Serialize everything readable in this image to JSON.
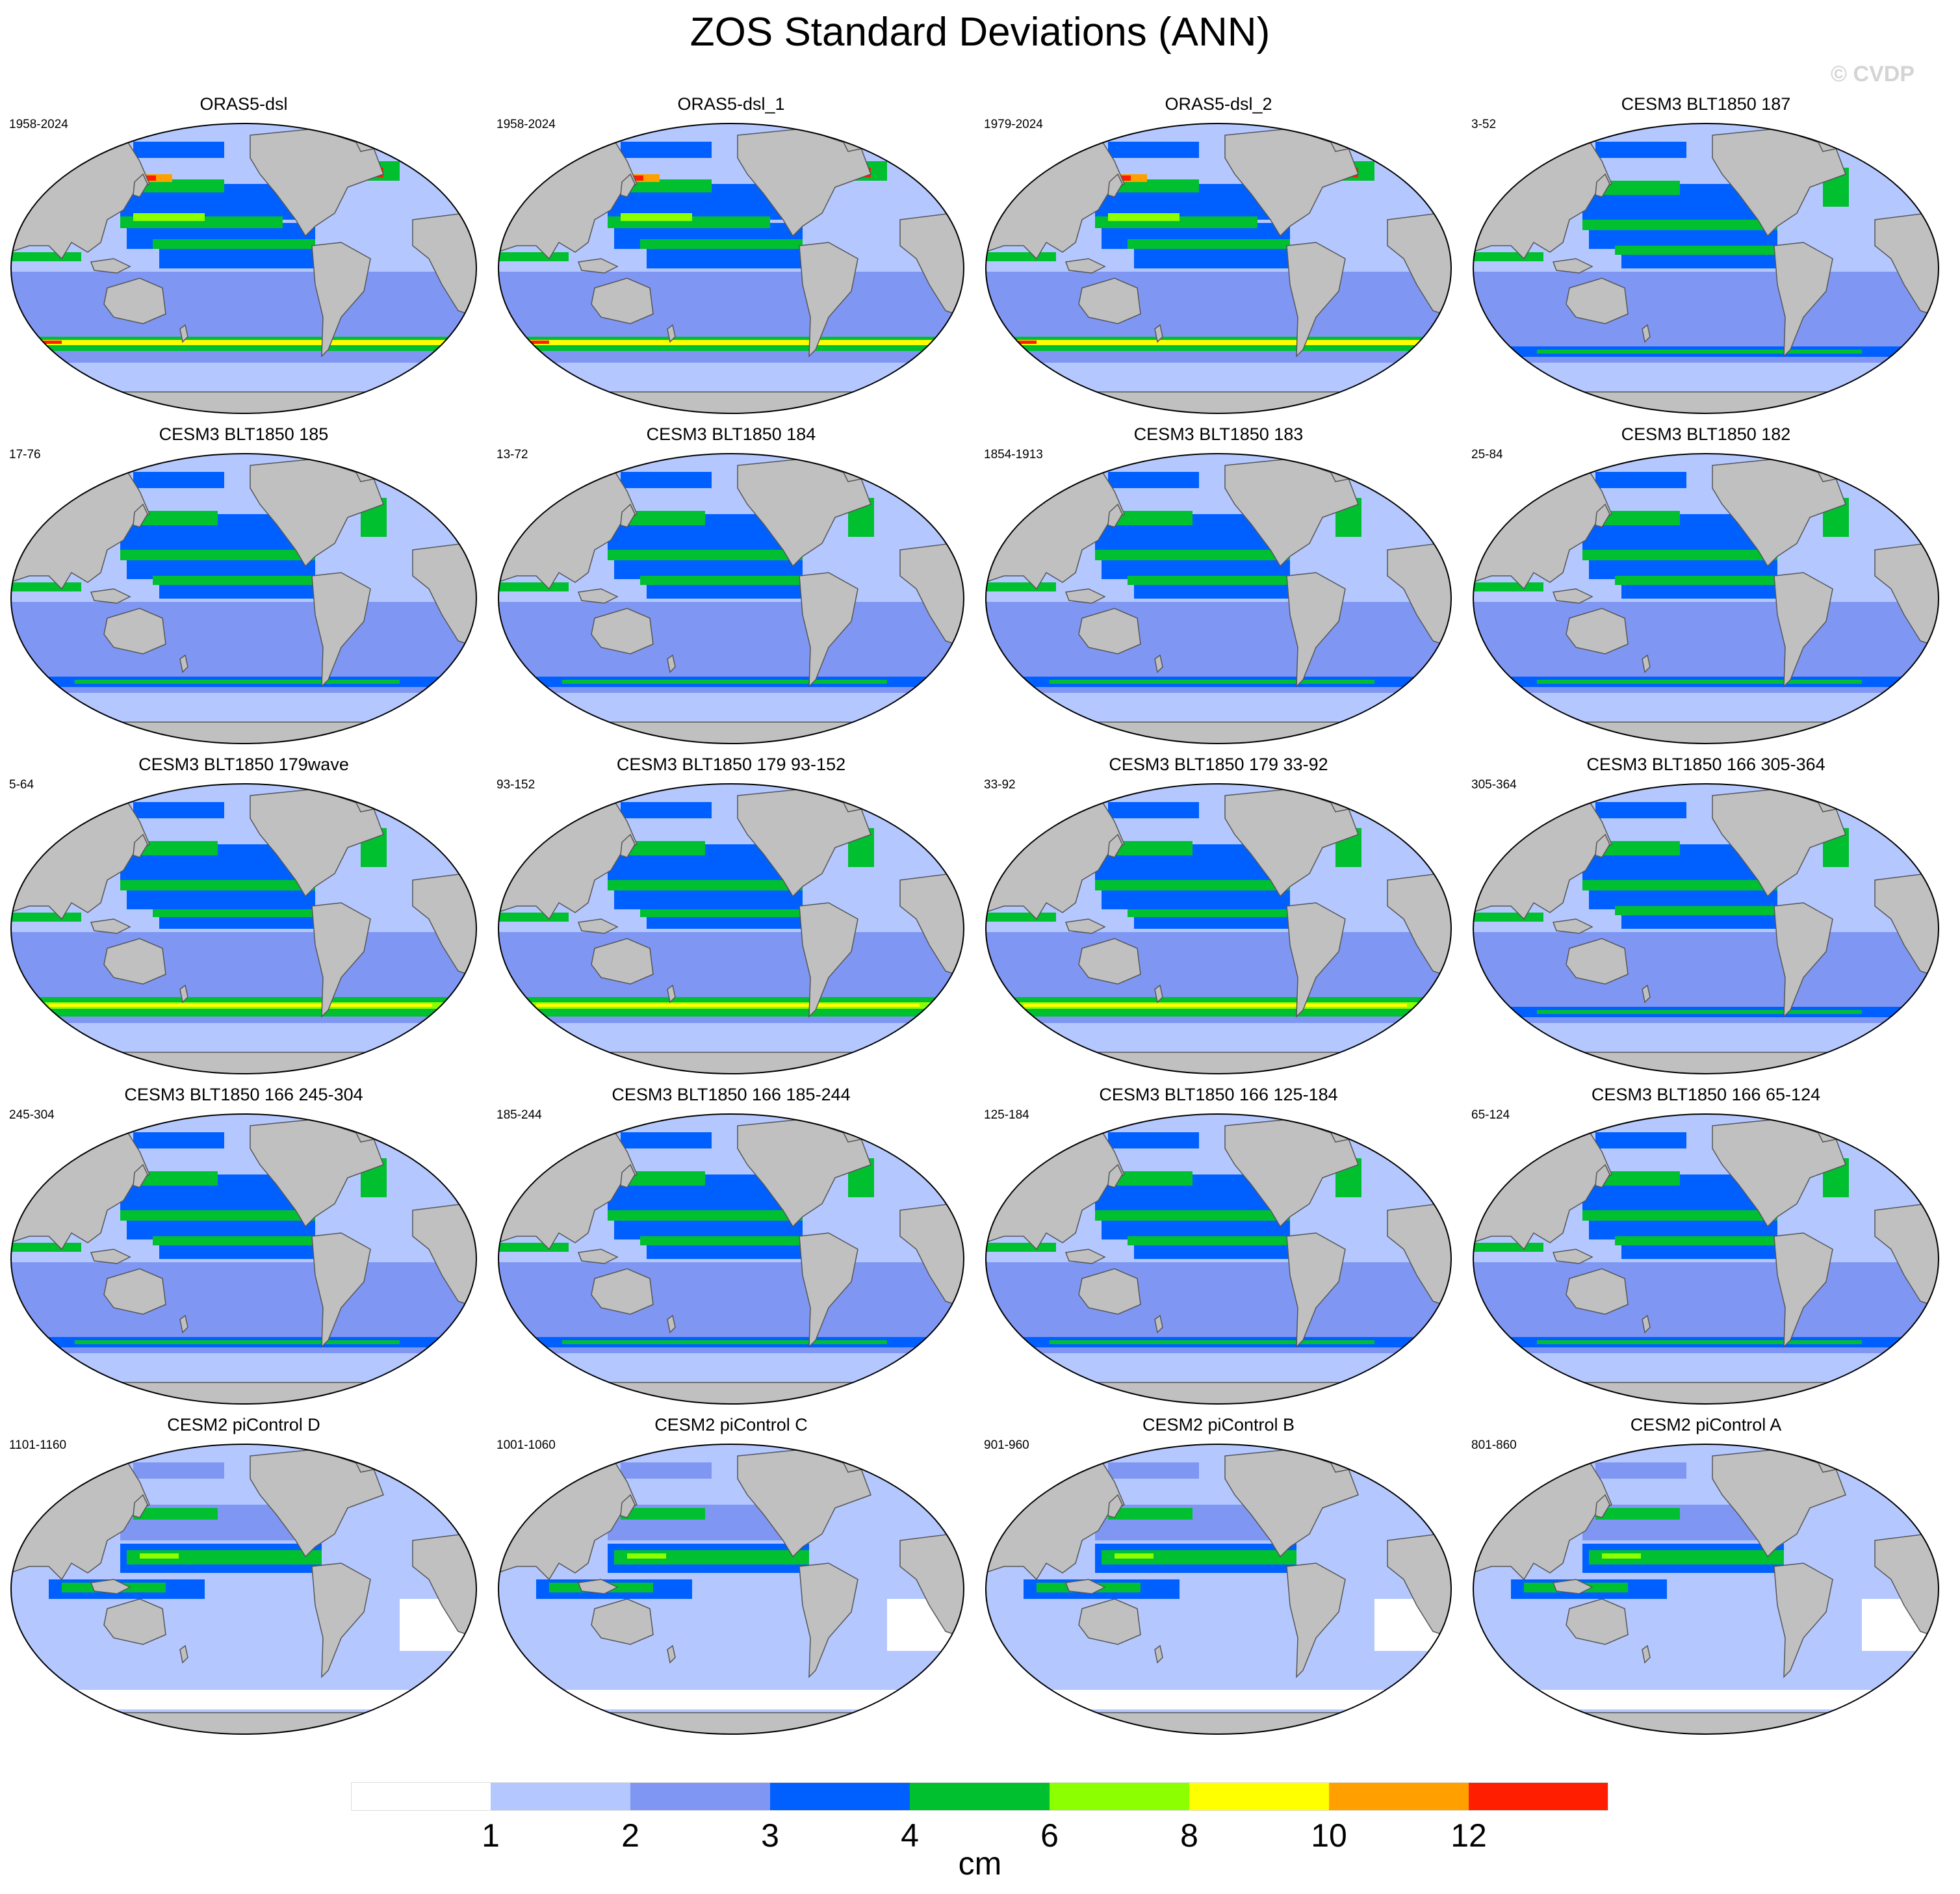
{
  "title": "ZOS Standard Deviations (ANN)",
  "watermark": "© CVDP",
  "panels": [
    {
      "title": "ORAS5-dsl",
      "years": "1958-2024",
      "style": "obs"
    },
    {
      "title": "ORAS5-dsl_1",
      "years": "1958-2024",
      "style": "obs"
    },
    {
      "title": "ORAS5-dsl_2",
      "years": "1979-2024",
      "style": "obs"
    },
    {
      "title": "CESM3 BLT1850 187",
      "years": "3-52",
      "style": "cesm3"
    },
    {
      "title": "CESM3 BLT1850 185",
      "years": "17-76",
      "style": "cesm3"
    },
    {
      "title": "CESM3 BLT1850 184",
      "years": "13-72",
      "style": "cesm3"
    },
    {
      "title": "CESM3 BLT1850 183",
      "years": "1854-1913",
      "style": "cesm3"
    },
    {
      "title": "CESM3 BLT1850 182",
      "years": "25-84",
      "style": "cesm3"
    },
    {
      "title": "CESM3 BLT1850 179wave",
      "years": "5-64",
      "style": "cesm3-acc"
    },
    {
      "title": "CESM3 BLT1850 179 93-152",
      "years": "93-152",
      "style": "cesm3-acc"
    },
    {
      "title": "CESM3 BLT1850 179 33-92",
      "years": "33-92",
      "style": "cesm3-acc"
    },
    {
      "title": "CESM3 BLT1850 166 305-364",
      "years": "305-364",
      "style": "cesm3"
    },
    {
      "title": "CESM3 BLT1850 166 245-304",
      "years": "245-304",
      "style": "cesm3"
    },
    {
      "title": "CESM3 BLT1850 166 185-244",
      "years": "185-244",
      "style": "cesm3"
    },
    {
      "title": "CESM3 BLT1850 166 125-184",
      "years": "125-184",
      "style": "cesm3"
    },
    {
      "title": "CESM3 BLT1850 166 65-124",
      "years": "65-124",
      "style": "cesm3"
    },
    {
      "title": "CESM2 piControl D",
      "years": "1101-1160",
      "style": "cesm2"
    },
    {
      "title": "CESM2 piControl C",
      "years": "1001-1060",
      "style": "cesm2"
    },
    {
      "title": "CESM2 piControl B",
      "years": "901-960",
      "style": "cesm2"
    },
    {
      "title": "CESM2 piControl A",
      "years": "801-860",
      "style": "cesm2"
    }
  ],
  "colorbar": {
    "colors": [
      "#ffffff",
      "#b4c8ff",
      "#7f97f3",
      "#0060ff",
      "#00c030",
      "#8cff00",
      "#ffff00",
      "#ffa000",
      "#ff1e00"
    ],
    "labels": [
      "1",
      "2",
      "3",
      "4",
      "6",
      "8",
      "10",
      "12"
    ],
    "units": "cm"
  },
  "colors": {
    "land": "#c0c0c0",
    "coast": "#555555"
  }
}
